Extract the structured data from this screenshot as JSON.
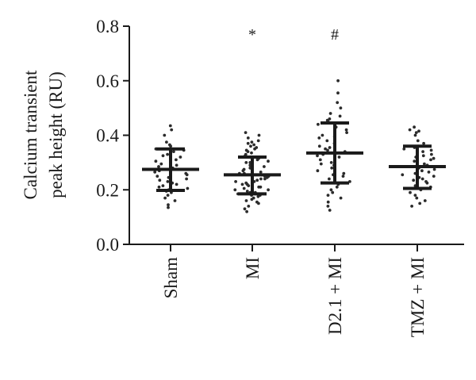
{
  "chart_data": {
    "type": "scatter",
    "ylabel_lines": [
      "Calcium transient",
      "peak height (RU)"
    ],
    "ylim": [
      0.0,
      0.8
    ],
    "yticks": [
      0.0,
      0.2,
      0.4,
      0.6,
      0.8
    ],
    "ytick_labels": [
      "0.0",
      "0.2",
      "0.4",
      "0.6",
      "0.8"
    ],
    "categories": [
      "Sham",
      "MI",
      "D2.1 + MI",
      "TMZ + MI"
    ],
    "summary": [
      {
        "category": "Sham",
        "mean": 0.275,
        "sd_low": 0.198,
        "sd_high": 0.35
      },
      {
        "category": "MI",
        "mean": 0.255,
        "sd_low": 0.185,
        "sd_high": 0.32
      },
      {
        "category": "D2.1 + MI",
        "mean": 0.335,
        "sd_low": 0.225,
        "sd_high": 0.445
      },
      {
        "category": "TMZ + MI",
        "mean": 0.285,
        "sd_low": 0.205,
        "sd_high": 0.36
      }
    ],
    "annotations": [
      {
        "category": "MI",
        "text": "*"
      },
      {
        "category": "D2.1 + MI",
        "text": "#"
      }
    ],
    "points": [
      {
        "category": "Sham",
        "values": [
          0.435,
          0.42,
          0.4,
          0.375,
          0.365,
          0.36,
          0.35,
          0.345,
          0.34,
          0.33,
          0.325,
          0.32,
          0.31,
          0.305,
          0.3,
          0.295,
          0.29,
          0.285,
          0.28,
          0.275,
          0.27,
          0.265,
          0.26,
          0.255,
          0.25,
          0.245,
          0.24,
          0.235,
          0.23,
          0.225,
          0.22,
          0.215,
          0.21,
          0.205,
          0.2,
          0.195,
          0.19,
          0.18,
          0.17,
          0.16,
          0.145,
          0.135
        ]
      },
      {
        "category": "MI",
        "values": [
          0.41,
          0.4,
          0.39,
          0.38,
          0.375,
          0.37,
          0.365,
          0.36,
          0.355,
          0.35,
          0.345,
          0.34,
          0.335,
          0.33,
          0.325,
          0.32,
          0.315,
          0.31,
          0.305,
          0.3,
          0.3,
          0.295,
          0.29,
          0.285,
          0.28,
          0.28,
          0.275,
          0.27,
          0.265,
          0.26,
          0.26,
          0.255,
          0.25,
          0.25,
          0.245,
          0.24,
          0.24,
          0.235,
          0.23,
          0.23,
          0.225,
          0.22,
          0.22,
          0.215,
          0.21,
          0.21,
          0.205,
          0.2,
          0.2,
          0.195,
          0.19,
          0.19,
          0.185,
          0.18,
          0.18,
          0.175,
          0.17,
          0.165,
          0.16,
          0.155,
          0.15,
          0.14,
          0.13,
          0.12
        ]
      },
      {
        "category": "D2.1 + MI",
        "values": [
          0.6,
          0.555,
          0.52,
          0.5,
          0.48,
          0.47,
          0.46,
          0.455,
          0.45,
          0.44,
          0.43,
          0.42,
          0.41,
          0.4,
          0.395,
          0.39,
          0.38,
          0.37,
          0.36,
          0.355,
          0.35,
          0.345,
          0.34,
          0.335,
          0.33,
          0.325,
          0.32,
          0.31,
          0.3,
          0.295,
          0.29,
          0.28,
          0.27,
          0.26,
          0.255,
          0.25,
          0.24,
          0.23,
          0.22,
          0.21,
          0.2,
          0.19,
          0.18,
          0.17,
          0.155,
          0.14,
          0.125
        ]
      },
      {
        "category": "TMZ + MI",
        "values": [
          0.43,
          0.42,
          0.415,
          0.41,
          0.4,
          0.38,
          0.37,
          0.36,
          0.355,
          0.35,
          0.345,
          0.34,
          0.335,
          0.33,
          0.325,
          0.32,
          0.315,
          0.31,
          0.305,
          0.3,
          0.295,
          0.29,
          0.285,
          0.28,
          0.275,
          0.27,
          0.265,
          0.26,
          0.255,
          0.25,
          0.245,
          0.24,
          0.235,
          0.23,
          0.225,
          0.22,
          0.215,
          0.21,
          0.2,
          0.19,
          0.18,
          0.17,
          0.16,
          0.15,
          0.14
        ]
      }
    ]
  }
}
